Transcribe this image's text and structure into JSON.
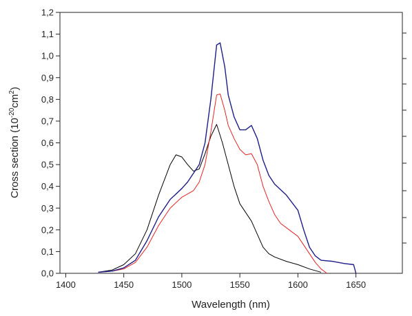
{
  "chart_data": {
    "type": "line",
    "xlabel": "Wavelength (nm)",
    "ylabel": [
      "Cross section (10",
      "-20",
      "cm",
      "2",
      ")"
    ],
    "xlim": [
      1395,
      1690
    ],
    "xticks": [
      1400,
      1450,
      1500,
      1550,
      1600,
      1650
    ],
    "ylim": [
      0,
      1.2
    ],
    "yticks": [
      {
        "value": 0,
        "label": "0,0"
      },
      {
        "value": 0.1,
        "label": "0,1"
      },
      {
        "value": 0.2,
        "label": "0,2"
      },
      {
        "value": 0.3,
        "label": "0,3"
      },
      {
        "value": 0.4,
        "label": "0,4"
      },
      {
        "value": 0.5,
        "label": "0,5"
      },
      {
        "value": 0.6,
        "label": "0,6"
      },
      {
        "value": 0.7,
        "label": "0,7"
      },
      {
        "value": 0.8,
        "label": "0,8"
      },
      {
        "value": 0.9,
        "label": "0,9"
      },
      {
        "value": 1.0,
        "label": "1,0"
      },
      {
        "value": 1.1,
        "label": "1,1"
      },
      {
        "value": 1.2,
        "label": "1,2"
      }
    ],
    "series": [
      {
        "color": "#000000",
        "x": [
          1428,
          1440,
          1450,
          1460,
          1470,
          1480,
          1490,
          1495,
          1500,
          1505,
          1510,
          1515,
          1520,
          1525,
          1530,
          1535,
          1540,
          1545,
          1550,
          1555,
          1560,
          1565,
          1570,
          1575,
          1580,
          1590,
          1600,
          1610,
          1620
        ],
        "values": [
          0.005,
          0.015,
          0.04,
          0.09,
          0.2,
          0.36,
          0.5,
          0.545,
          0.535,
          0.5,
          0.47,
          0.48,
          0.55,
          0.63,
          0.685,
          0.6,
          0.5,
          0.4,
          0.32,
          0.28,
          0.24,
          0.18,
          0.12,
          0.09,
          0.075,
          0.055,
          0.04,
          0.02,
          0.005
        ]
      },
      {
        "color": "#e8231f",
        "x": [
          1428,
          1440,
          1450,
          1460,
          1470,
          1480,
          1490,
          1500,
          1510,
          1515,
          1520,
          1525,
          1530,
          1533,
          1537,
          1540,
          1545,
          1550,
          1555,
          1560,
          1565,
          1570,
          1575,
          1580,
          1585,
          1590,
          1600,
          1605,
          1610,
          1615,
          1620,
          1625
        ],
        "values": [
          0.005,
          0.01,
          0.02,
          0.05,
          0.12,
          0.22,
          0.3,
          0.35,
          0.38,
          0.42,
          0.5,
          0.65,
          0.82,
          0.825,
          0.75,
          0.68,
          0.62,
          0.57,
          0.545,
          0.55,
          0.5,
          0.4,
          0.33,
          0.27,
          0.23,
          0.21,
          0.17,
          0.13,
          0.09,
          0.05,
          0.02,
          0.0
        ]
      },
      {
        "color": "#1c1c8a",
        "x": [
          1428,
          1440,
          1450,
          1460,
          1470,
          1480,
          1490,
          1500,
          1505,
          1510,
          1515,
          1520,
          1525,
          1530,
          1533,
          1537,
          1540,
          1545,
          1550,
          1555,
          1560,
          1565,
          1570,
          1575,
          1580,
          1590,
          1600,
          1605,
          1610,
          1615,
          1620,
          1630,
          1640,
          1648,
          1650
        ],
        "values": [
          0.005,
          0.01,
          0.025,
          0.06,
          0.15,
          0.26,
          0.34,
          0.39,
          0.42,
          0.46,
          0.5,
          0.6,
          0.8,
          1.05,
          1.06,
          0.95,
          0.82,
          0.72,
          0.66,
          0.66,
          0.68,
          0.62,
          0.52,
          0.45,
          0.41,
          0.36,
          0.29,
          0.2,
          0.12,
          0.08,
          0.06,
          0.055,
          0.045,
          0.04,
          0.0
        ]
      }
    ]
  }
}
